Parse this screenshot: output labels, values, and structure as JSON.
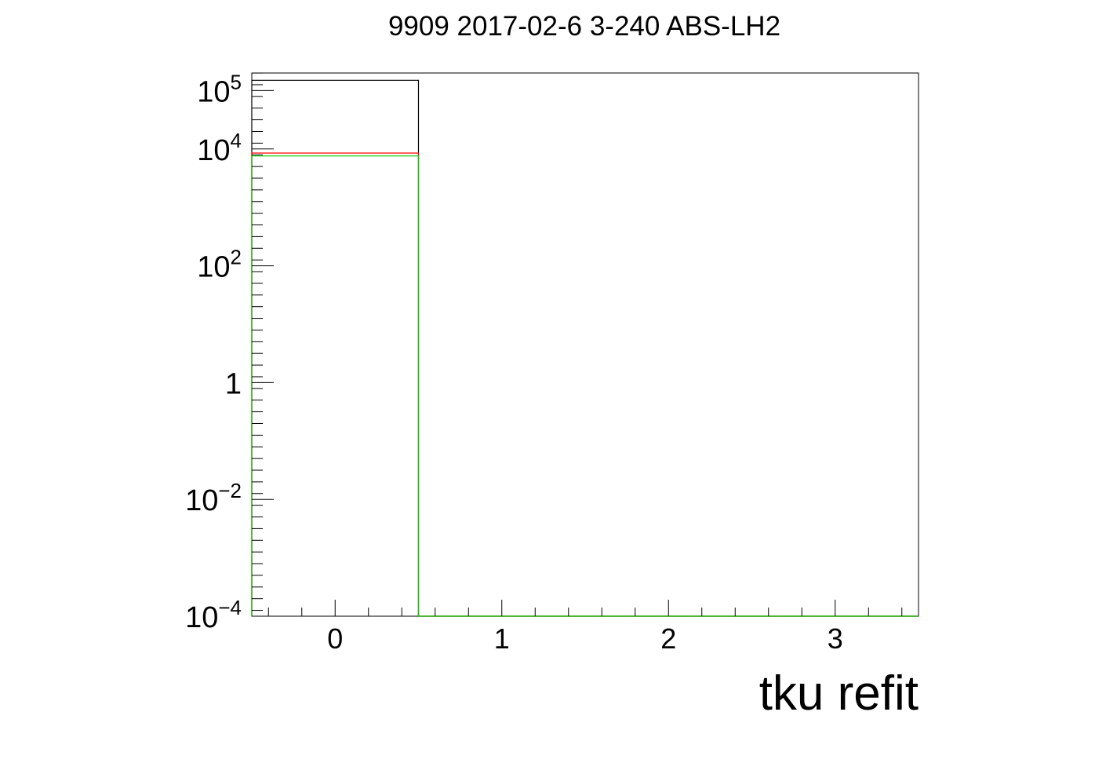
{
  "chart_data": {
    "type": "bar",
    "title": "9909 2017-02-6 3-240 ABS-LH2",
    "xlabel": "tku refit",
    "ylabel": "",
    "xlim": [
      -0.5,
      3.5
    ],
    "ylim": [
      0.0001,
      200000
    ],
    "y_scale": "log",
    "grid": false,
    "x_ticks": [
      0,
      1,
      2,
      3
    ],
    "y_ticks": [
      {
        "value": 100000,
        "base": "10",
        "exp": "5"
      },
      {
        "value": 10000,
        "base": "10",
        "exp": "4"
      },
      {
        "value": 100,
        "base": "10",
        "exp": "2"
      },
      {
        "value": 1,
        "base": "1",
        "exp": ""
      },
      {
        "value": 0.01,
        "base": "10",
        "exp": "−2"
      },
      {
        "value": 0.0001,
        "base": "10",
        "exp": "−4"
      }
    ],
    "bin_edges": [
      -0.5,
      0.5,
      1.5,
      2.5,
      3.5
    ],
    "series": [
      {
        "color": "#000000",
        "values": [
          150000,
          0,
          0,
          0
        ]
      },
      {
        "color": "#ff0000",
        "values": [
          8500,
          0,
          0,
          0
        ]
      },
      {
        "color": "#00cc00",
        "values": [
          7600,
          0,
          0,
          0
        ]
      }
    ]
  }
}
